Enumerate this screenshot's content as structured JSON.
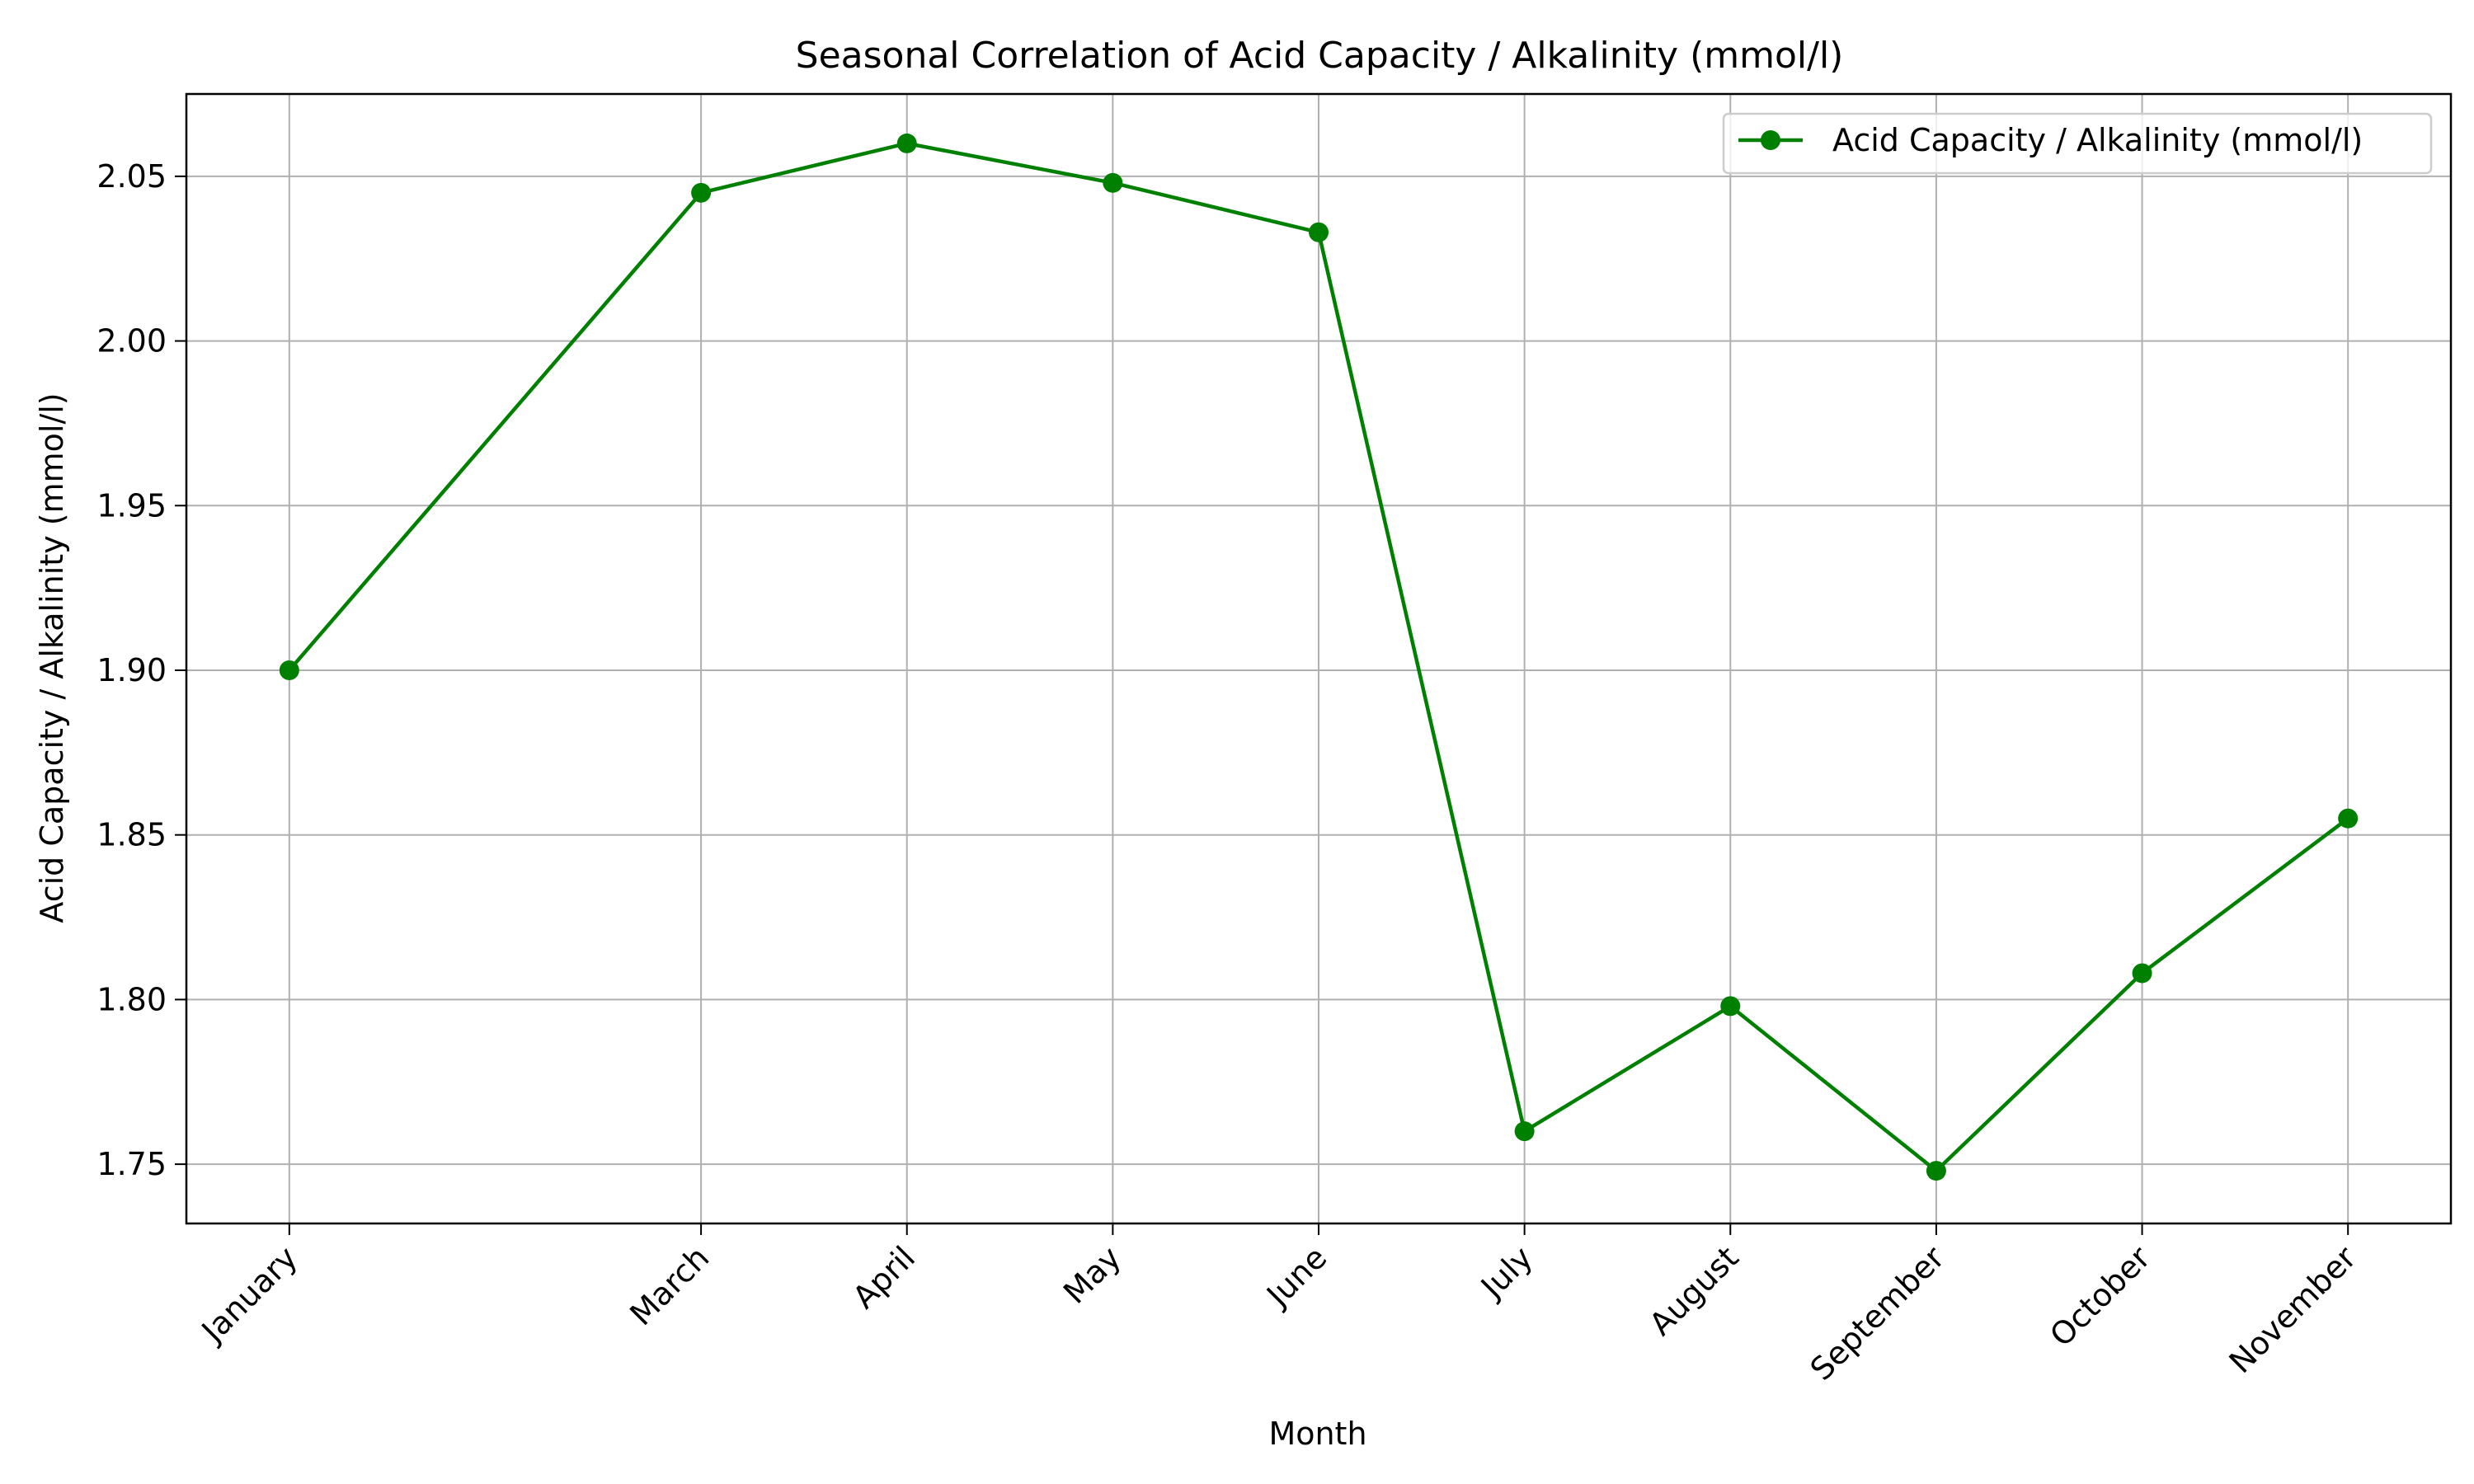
{
  "chart_data": {
    "type": "line",
    "title": "Seasonal Correlation of Acid Capacity / Alkalinity (mmol/l)",
    "xlabel": "Month",
    "ylabel": "Acid Capacity / Alkalinity (mmol/l)",
    "x_axis": {
      "scale": "month-index",
      "range": [
        0.5,
        11.5
      ]
    },
    "categories": [
      "January",
      "March",
      "April",
      "May",
      "June",
      "July",
      "August",
      "September",
      "October",
      "November"
    ],
    "month_numbers": [
      1,
      3,
      4,
      5,
      6,
      7,
      8,
      9,
      10,
      11
    ],
    "yticks": [
      "1.75",
      "1.80",
      "1.85",
      "1.90",
      "1.95",
      "2.00",
      "2.05"
    ],
    "ylim": [
      1.732,
      2.075
    ],
    "grid": true,
    "legend_position": "top-right",
    "series": [
      {
        "name": "Acid Capacity / Alkalinity (mmol/l)",
        "color": "#008000",
        "marker": "circle",
        "values": [
          1.9,
          2.045,
          2.06,
          2.048,
          2.033,
          1.76,
          1.798,
          1.748,
          1.808,
          1.855
        ]
      }
    ]
  }
}
